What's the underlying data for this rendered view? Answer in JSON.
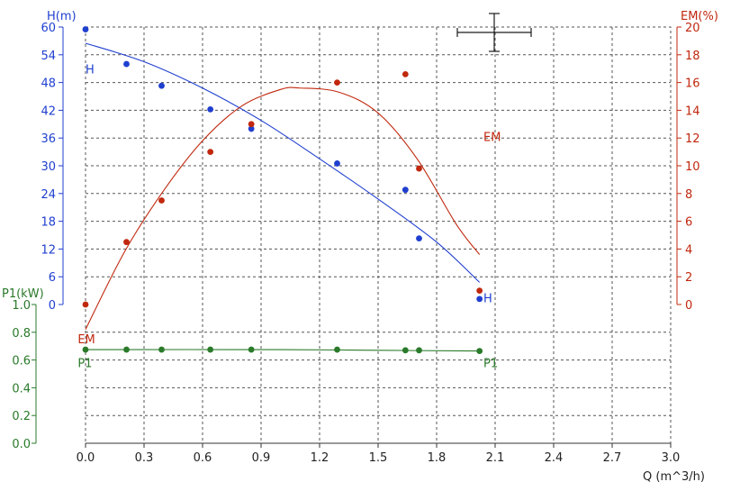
{
  "chart_data": {
    "type": "scatter",
    "xlabel": "Q (m^3/h)",
    "xlim": [
      0,
      3.0
    ],
    "xticks": [
      "0.0",
      "0.3",
      "0.6",
      "0.9",
      "1.2",
      "1.5",
      "1.8",
      "2.1",
      "2.4",
      "2.7",
      "3.0"
    ],
    "grid": true,
    "axes": {
      "H": {
        "label": "H(m)",
        "side": "left",
        "range": [
          0,
          60
        ],
        "ticks": [
          "0",
          "6",
          "12",
          "18",
          "24",
          "30",
          "36",
          "42",
          "48",
          "54",
          "60"
        ],
        "color": "#1f3fcf"
      },
      "EM": {
        "label": "EM(%)",
        "side": "right",
        "range": [
          0,
          20
        ],
        "ticks": [
          "0",
          "2",
          "4",
          "6",
          "8",
          "10",
          "12",
          "14",
          "16",
          "18",
          "20"
        ],
        "color": "#c0280e"
      },
      "P1": {
        "label": "P1(kW)",
        "side": "left",
        "range": [
          0,
          1.0
        ],
        "ticks": [
          "0.0",
          "0.2",
          "0.4",
          "0.6",
          "0.8",
          "1.0"
        ],
        "color": "#2a7a2a"
      }
    },
    "series": [
      {
        "name": "H",
        "axis": "H",
        "color": "#1f3fcf",
        "points": [
          [
            0.0,
            59.5
          ],
          [
            0.21,
            52.0
          ],
          [
            0.39,
            47.3
          ],
          [
            0.64,
            42.2
          ],
          [
            0.85,
            38.0
          ],
          [
            1.29,
            30.5
          ],
          [
            1.64,
            24.8
          ],
          [
            1.71,
            14.3
          ],
          [
            2.02,
            1.2
          ]
        ],
        "fit": [
          [
            0.0,
            56.5
          ],
          [
            0.3,
            52.5
          ],
          [
            0.6,
            46.8
          ],
          [
            0.9,
            39.8
          ],
          [
            1.2,
            31.5
          ],
          [
            1.5,
            22.8
          ],
          [
            1.8,
            13.5
          ],
          [
            2.02,
            4.8
          ]
        ]
      },
      {
        "name": "EM",
        "axis": "EM",
        "color": "#c0280e",
        "points": [
          [
            0.0,
            0.0
          ],
          [
            0.21,
            4.5
          ],
          [
            0.39,
            7.5
          ],
          [
            0.64,
            11.0
          ],
          [
            0.85,
            13.0
          ],
          [
            1.29,
            16.0
          ],
          [
            1.64,
            16.6
          ],
          [
            1.71,
            9.8
          ],
          [
            2.02,
            1.0
          ]
        ],
        "fit": [
          [
            0.0,
            -1.8
          ],
          [
            0.2,
            3.8
          ],
          [
            0.4,
            8.2
          ],
          [
            0.6,
            11.8
          ],
          [
            0.8,
            14.3
          ],
          [
            1.0,
            15.5
          ],
          [
            1.1,
            15.6
          ],
          [
            1.3,
            15.3
          ],
          [
            1.5,
            13.8
          ],
          [
            1.7,
            10.5
          ],
          [
            1.9,
            5.8
          ],
          [
            2.02,
            3.6
          ]
        ]
      },
      {
        "name": "P1",
        "axis": "P1",
        "color": "#2a7a2a",
        "points": [
          [
            0.0,
            0.675
          ],
          [
            0.21,
            0.675
          ],
          [
            0.39,
            0.675
          ],
          [
            0.64,
            0.675
          ],
          [
            0.85,
            0.675
          ],
          [
            1.29,
            0.675
          ],
          [
            1.64,
            0.67
          ],
          [
            1.71,
            0.67
          ],
          [
            2.02,
            0.665
          ]
        ],
        "fit": [
          [
            0.0,
            0.675
          ],
          [
            1.0,
            0.675
          ],
          [
            1.5,
            0.67
          ],
          [
            2.02,
            0.665
          ]
        ]
      }
    ],
    "curve_labels": [
      {
        "text": "H",
        "series": "H",
        "at": [
          0.0,
          50.0
        ]
      },
      {
        "text": "H",
        "series": "H",
        "at": [
          2.04,
          0.5
        ]
      },
      {
        "text": "EM",
        "series": "EM",
        "at": [
          2.04,
          11.8
        ]
      },
      {
        "text": "EM",
        "series": "P1",
        "color": "#c0280e",
        "at": [
          -0.04,
          0.72
        ]
      },
      {
        "text": "P1",
        "series": "P1",
        "at": [
          -0.04,
          0.55
        ]
      },
      {
        "text": "P1",
        "series": "P1",
        "at": [
          2.04,
          0.55
        ]
      }
    ],
    "error_cross": {
      "color": "#1a1a1a"
    }
  }
}
